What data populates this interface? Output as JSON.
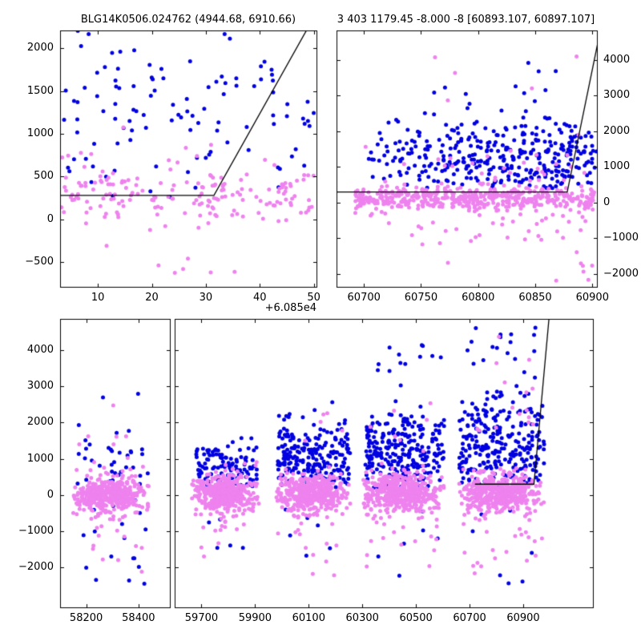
{
  "figure": {
    "background": "#ffffff",
    "text_color": "#000000",
    "point_radius": 2.5,
    "series_colors": {
      "blue": "#0000e0",
      "violet": "#ee82ee"
    },
    "model_line_color": "#000000"
  },
  "chart_data": [
    {
      "name": "top-left-panel",
      "type": "scatter",
      "title": "BLG14K0506.024762 (4944.68, 6910.66)",
      "x_offset_label": "+6.085e4",
      "xlim": [
        3,
        50.5
      ],
      "ylim": [
        -790,
        2210
      ],
      "xticks": [
        10,
        20,
        30,
        40,
        50
      ],
      "yticks": [
        -500,
        0,
        500,
        1000,
        1500,
        2000
      ],
      "ytick_labels_side": "left",
      "series": [
        {
          "name": "blue",
          "color": "#0000e0",
          "clusters": [
            {
              "n": 95,
              "x": {
                "type": "uniform",
                "min": 3.5,
                "max": 50
              },
              "y": {
                "type": "gauss",
                "mean": 1400,
                "sigma": 480,
                "clip": [
                  420,
                  2260
                ]
              }
            },
            {
              "n": 14,
              "x": {
                "type": "uniform",
                "min": 4,
                "max": 48
              },
              "y": {
                "type": "uniform",
                "min": 250,
                "max": 750
              }
            }
          ]
        },
        {
          "name": "violet",
          "color": "#ee82ee",
          "clusters": [
            {
              "n": 150,
              "x": {
                "type": "uniform",
                "min": 3,
                "max": 50.3
              },
              "y": {
                "type": "gauss",
                "mean": 290,
                "sigma": 170,
                "clip": [
                  -160,
                  820
                ]
              }
            },
            {
              "n": 32,
              "x": {
                "type": "uniform",
                "min": 3,
                "max": 50
              },
              "y": {
                "type": "gauss",
                "mean": 300,
                "sigma": 460,
                "clip": [
                  -700,
                  1500
                ]
              }
            },
            {
              "n": 6,
              "x": {
                "type": "uniform",
                "min": 4,
                "max": 36
              },
              "y": {
                "type": "uniform",
                "min": -680,
                "max": -280
              }
            }
          ]
        }
      ],
      "model_line": {
        "color": "#000000",
        "points": [
          [
            3,
            280
          ],
          [
            31.5,
            280
          ],
          [
            50.5,
            2420
          ]
        ]
      }
    },
    {
      "name": "top-right-panel",
      "type": "scatter",
      "title": "3 403 1179.45 -8.000 -8 [60893.107, 60897.107]",
      "xlim": [
        60676,
        60904
      ],
      "ylim": [
        -2360,
        4830
      ],
      "xticks": [
        60700,
        60750,
        60800,
        60850,
        60900
      ],
      "yticks": [
        -2000,
        -1000,
        0,
        1000,
        2000,
        3000,
        4000
      ],
      "ytick_labels_side": "right",
      "series": [
        {
          "name": "blue",
          "color": "#0000e0",
          "clusters": [
            {
              "x": {
                "type": "clumps",
                "centers": [
                  60713,
                  60728,
                  60742,
                  60756,
                  60769,
                  60782,
                  60795,
                  60808,
                  60821,
                  60834,
                  60847,
                  60860,
                  60873,
                  60886,
                  60897
                ],
                "counts": [
                  12,
                  15,
                  18,
                  20,
                  22,
                  25,
                  24,
                  27,
                  26,
                  29,
                  31,
                  30,
                  33,
                  30,
                  18
                ],
                "sd": 4.5
              },
              "y": {
                "type": "gauss",
                "mean": 1250,
                "sigma": 560,
                "clip": [
                  350,
                  2650
                ]
              }
            },
            {
              "n": 12,
              "x": {
                "type": "uniform",
                "min": 60730,
                "max": 60898
              },
              "y": {
                "type": "uniform",
                "min": 2650,
                "max": 4400
              }
            }
          ]
        },
        {
          "name": "violet",
          "color": "#ee82ee",
          "clusters": [
            {
              "n": 480,
              "x": {
                "type": "uniform",
                "min": 60692,
                "max": 60902
              },
              "y": {
                "type": "gauss",
                "mean": 130,
                "sigma": 160,
                "clip": [
                  -380,
                  720
                ]
              }
            },
            {
              "n": 55,
              "x": {
                "type": "uniform",
                "min": 60700,
                "max": 60900
              },
              "y": {
                "type": "gauss",
                "mean": -500,
                "sigma": 600,
                "clip": [
                  -2350,
                  50
                ]
              }
            },
            {
              "n": 28,
              "x": {
                "type": "uniform",
                "min": 60700,
                "max": 60900
              },
              "y": {
                "type": "gauss",
                "mean": 950,
                "sigma": 480,
                "clip": [
                  520,
                  2500
                ]
              }
            },
            {
              "n": 5,
              "x": {
                "type": "uniform",
                "min": 60750,
                "max": 60890
              },
              "y": {
                "type": "uniform",
                "min": 2700,
                "max": 4300
              }
            }
          ]
        }
      ],
      "model_line": {
        "color": "#000000",
        "points": [
          [
            60676,
            300
          ],
          [
            60878,
            300
          ],
          [
            60907,
            4830
          ]
        ]
      }
    },
    {
      "name": "bottom-panel-left-segment",
      "type": "scatter",
      "xlim": [
        58100,
        58520
      ],
      "ylim": [
        -3100,
        4860
      ],
      "xticks": [
        58200,
        58400
      ],
      "yticks": [
        -2000,
        -1000,
        0,
        1000,
        2000,
        3000,
        4000
      ],
      "ytick_labels_side": "left",
      "series": [
        {
          "name": "blue",
          "color": "#0000e0",
          "clusters": [
            {
              "n": 50,
              "x": {
                "type": "uniform",
                "min": 58160,
                "max": 58440
              },
              "y": {
                "type": "gauss",
                "mean": 500,
                "sigma": 900,
                "clip": [
                  -1400,
                  3250
                ]
              }
            },
            {
              "n": 8,
              "x": {
                "type": "uniform",
                "min": 58180,
                "max": 58430
              },
              "y": {
                "type": "uniform",
                "min": -2450,
                "max": -1450
              }
            }
          ]
        },
        {
          "name": "violet",
          "color": "#ee82ee",
          "clusters": [
            {
              "n": 400,
              "x": {
                "type": "gauss",
                "mean": 58290,
                "sigma": 70,
                "clip": [
                  58150,
                  58445
                ]
              },
              "y": {
                "type": "gauss",
                "mean": 0,
                "sigma": 230,
                "clip": [
                  -750,
                  850
                ]
              }
            },
            {
              "n": 45,
              "x": {
                "type": "uniform",
                "min": 58160,
                "max": 58440
              },
              "y": {
                "type": "gauss",
                "mean": -350,
                "sigma": 850,
                "clip": [
                  -2600,
                  1600
                ]
              }
            },
            {
              "n": 4,
              "x": {
                "type": "uniform",
                "min": 58200,
                "max": 58420
              },
              "y": {
                "type": "uniform",
                "min": 1600,
                "max": 2600
              }
            }
          ]
        }
      ]
    },
    {
      "name": "bottom-panel-right-segment",
      "type": "scatter",
      "xlim": [
        59600,
        61160
      ],
      "ylim": [
        -3100,
        4860
      ],
      "xticks": [
        59700,
        59900,
        60100,
        60300,
        60500,
        60700,
        60900
      ],
      "yticks": [
        -2000,
        -1000,
        0,
        1000,
        2000,
        3000,
        4000
      ],
      "ytick_labels_side": "none",
      "series": [
        {
          "name": "blue",
          "color": "#0000e0",
          "clusters": [
            {
              "n": 120,
              "x": {
                "type": "uniform",
                "min": 59675,
                "max": 59910
              },
              "y": {
                "type": "gauss",
                "mean": 700,
                "sigma": 380,
                "clip": [
                  120,
                  1580
                ]
              }
            },
            {
              "n": 5,
              "x": {
                "type": "uniform",
                "min": 59690,
                "max": 59900
              },
              "y": {
                "type": "uniform",
                "min": -1800,
                "max": -400
              }
            },
            {
              "n": 220,
              "x": {
                "type": "uniform",
                "min": 59985,
                "max": 60255
              },
              "y": {
                "type": "gauss",
                "mean": 1100,
                "sigma": 520,
                "clip": [
                  200,
                  2900
                ]
              }
            },
            {
              "n": 6,
              "x": {
                "type": "uniform",
                "min": 60000,
                "max": 60240
              },
              "y": {
                "type": "uniform",
                "min": -2100,
                "max": -400
              }
            },
            {
              "n": 250,
              "x": {
                "type": "uniform",
                "min": 60310,
                "max": 60605
              },
              "y": {
                "type": "gauss",
                "mean": 1250,
                "sigma": 620,
                "clip": [
                  200,
                  3250
                ]
              }
            },
            {
              "n": 12,
              "x": {
                "type": "uniform",
                "min": 60340,
                "max": 60600
              },
              "y": {
                "type": "uniform",
                "min": 3250,
                "max": 4600
              }
            },
            {
              "n": 6,
              "x": {
                "type": "uniform",
                "min": 60320,
                "max": 60590
              },
              "y": {
                "type": "uniform",
                "min": -2300,
                "max": -400
              }
            },
            {
              "n": 270,
              "x": {
                "type": "uniform",
                "min": 60660,
                "max": 60980
              },
              "y": {
                "type": "gauss",
                "mean": 1350,
                "sigma": 680,
                "clip": [
                  200,
                  3500
                ]
              }
            },
            {
              "n": 16,
              "x": {
                "type": "uniform",
                "min": 60680,
                "max": 60960
              },
              "y": {
                "type": "uniform",
                "min": 3500,
                "max": 4750
              }
            },
            {
              "n": 7,
              "x": {
                "type": "uniform",
                "min": 60670,
                "max": 60950
              },
              "y": {
                "type": "uniform",
                "min": -2500,
                "max": -400
              }
            }
          ]
        },
        {
          "name": "violet",
          "color": "#ee82ee",
          "clusters": [
            {
              "n": 400,
              "x": {
                "type": "gauss",
                "mean": 59785,
                "sigma": 60,
                "clip": [
                  59660,
                  59915
                ]
              },
              "y": {
                "type": "gauss",
                "mean": 50,
                "sigma": 240,
                "clip": [
                  -800,
                  900
                ]
              }
            },
            {
              "n": 35,
              "x": {
                "type": "uniform",
                "min": 59670,
                "max": 59910
              },
              "y": {
                "type": "gauss",
                "mean": -350,
                "sigma": 750,
                "clip": [
                  -2350,
                  1500
                ]
              }
            },
            {
              "n": 450,
              "x": {
                "type": "gauss",
                "mean": 60110,
                "sigma": 65,
                "clip": [
                  59975,
                  60255
                ]
              },
              "y": {
                "type": "gauss",
                "mean": 50,
                "sigma": 250,
                "clip": [
                  -850,
                  1000
                ]
              }
            },
            {
              "n": 35,
              "x": {
                "type": "uniform",
                "min": 59985,
                "max": 60250
              },
              "y": {
                "type": "gauss",
                "mean": -400,
                "sigma": 750,
                "clip": [
                  -2550,
                  100
                ]
              }
            },
            {
              "n": 5,
              "x": {
                "type": "uniform",
                "min": 60000,
                "max": 60240
              },
              "y": {
                "type": "uniform",
                "min": 1100,
                "max": 2300
              }
            },
            {
              "n": 460,
              "x": {
                "type": "gauss",
                "mean": 60445,
                "sigma": 70,
                "clip": [
                  60300,
                  60610
                ]
              },
              "y": {
                "type": "gauss",
                "mean": 60,
                "sigma": 260,
                "clip": [
                  -900,
                  1100
                ]
              }
            },
            {
              "n": 38,
              "x": {
                "type": "uniform",
                "min": 60310,
                "max": 60600
              },
              "y": {
                "type": "gauss",
                "mean": -450,
                "sigma": 800,
                "clip": [
                  -2700,
                  100
                ]
              }
            },
            {
              "n": 7,
              "x": {
                "type": "uniform",
                "min": 60330,
                "max": 60590
              },
              "y": {
                "type": "uniform",
                "min": 1200,
                "max": 2800
              }
            },
            {
              "n": 420,
              "x": {
                "type": "gauss",
                "mean": 60810,
                "sigma": 75,
                "clip": [
                  60660,
                  60985
                ]
              },
              "y": {
                "type": "gauss",
                "mean": 80,
                "sigma": 270,
                "clip": [
                  -900,
                  1250
                ]
              }
            },
            {
              "n": 40,
              "x": {
                "type": "uniform",
                "min": 60670,
                "max": 60975
              },
              "y": {
                "type": "gauss",
                "mean": -500,
                "sigma": 800,
                "clip": [
                  -2800,
                  150
                ]
              }
            },
            {
              "n": 12,
              "x": {
                "type": "uniform",
                "min": 60690,
                "max": 60960
              },
              "y": {
                "type": "uniform",
                "min": 1300,
                "max": 3400
              }
            },
            {
              "n": 3,
              "x": {
                "type": "uniform",
                "min": 60800,
                "max": 60930
              },
              "y": {
                "type": "uniform",
                "min": 3600,
                "max": 4500
              }
            }
          ]
        }
      ],
      "model_line": {
        "color": "#000000",
        "points": [
          [
            60720,
            300
          ],
          [
            60940,
            300
          ],
          [
            60996,
            4860
          ]
        ]
      }
    }
  ]
}
